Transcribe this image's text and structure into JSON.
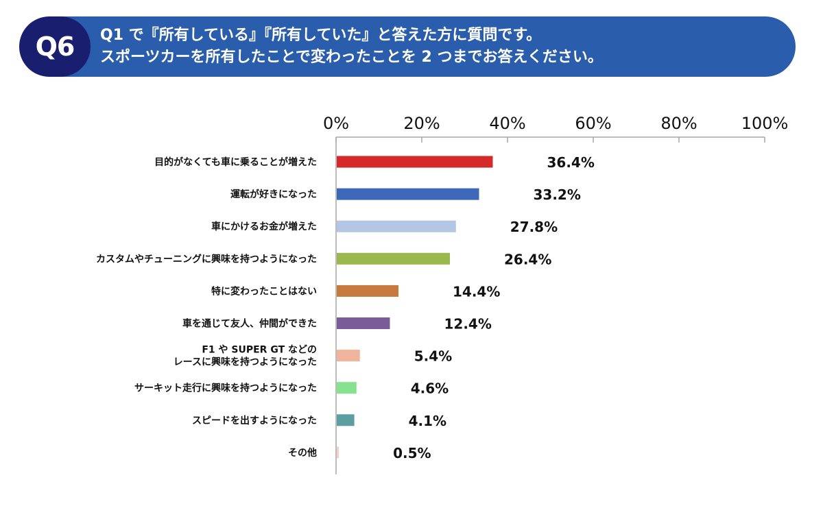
{
  "header": {
    "badge": "Q6",
    "line1": "Q1 で『所有している』『所有していた』と答えた方に質問です。",
    "line2": "スポーツカーを所有したことで変わったことを 2 つまでお答えください。",
    "colors": {
      "banner": "#2a5dab",
      "badge": "#1a1e6e"
    }
  },
  "chart_data": {
    "type": "bar",
    "orientation": "horizontal",
    "x_ticks": [
      "0%",
      "20%",
      "40%",
      "60%",
      "80%",
      "100%"
    ],
    "xlim": [
      0,
      100
    ],
    "categories": [
      [
        "目的がなくても車に乗ることが増えた"
      ],
      [
        "運転が好きになった"
      ],
      [
        "車にかけるお金が増えた"
      ],
      [
        "カスタムやチューニングに興味を持つようになった"
      ],
      [
        "特に変わったことはない"
      ],
      [
        "車を通じて友人、仲間ができた"
      ],
      [
        "F1 や SUPER GT などの",
        "レースに興味を持つようになった"
      ],
      [
        "サーキット走行に興味を持つようになった"
      ],
      [
        "スピードを出すようになった"
      ],
      [
        "その他"
      ]
    ],
    "values": [
      36.4,
      33.2,
      27.8,
      26.4,
      14.4,
      12.4,
      5.4,
      4.6,
      4.1,
      0.5
    ],
    "value_labels": [
      "36.4%",
      "33.2%",
      "27.8%",
      "26.4%",
      "14.4%",
      "12.4%",
      "5.4%",
      "4.6%",
      "4.1%",
      "0.5%"
    ],
    "colors": [
      "#d42a2a",
      "#3d68b8",
      "#b3c6e4",
      "#9bb84e",
      "#c67a40",
      "#7a5c9a",
      "#f0b49c",
      "#86e28e",
      "#5f9ea0",
      "#f2d2c8"
    ]
  }
}
